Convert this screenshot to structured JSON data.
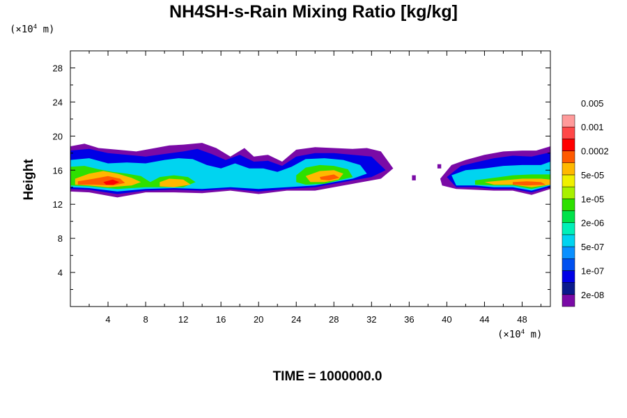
{
  "title": "NH4SH-s-Rain Mixing Ratio [kg/kg]",
  "y_unit": {
    "prefix": "(×10",
    "exp": "4",
    "suffix": " m)"
  },
  "x_unit": {
    "prefix": "(×10",
    "exp": "4",
    "suffix": " m)"
  },
  "time_label": "TIME = 1000000.0",
  "chart_data": {
    "type": "heatmap",
    "title": "NH4SH-s-Rain Mixing Ratio [kg/kg]",
    "xlabel": "",
    "ylabel": "Height",
    "xlim": [
      0,
      51
    ],
    "ylim": [
      0,
      30
    ],
    "x_ticks": [
      4,
      8,
      12,
      16,
      20,
      24,
      28,
      32,
      36,
      40,
      44,
      48
    ],
    "y_ticks": [
      4,
      8,
      12,
      16,
      20,
      24,
      28
    ],
    "colorbar": {
      "colors": [
        "#7a0aa6",
        "#0a1a8c",
        "#0000e6",
        "#0050f0",
        "#0a90ff",
        "#00d4f0",
        "#00f0b8",
        "#00e24a",
        "#2ee000",
        "#a8f000",
        "#f0f000",
        "#ffb800",
        "#ff5a00",
        "#ff0000",
        "#ff4848",
        "#ff9a9a"
      ],
      "labels": [
        "2e-08",
        "1e-07",
        "5e-07",
        "2e-06",
        "1e-05",
        "5e-05",
        "0.0002",
        "0.001",
        "0.005"
      ],
      "label_boundary_index": [
        1,
        3,
        5,
        7,
        9,
        11,
        13,
        15,
        17
      ]
    },
    "cloud_layers": [
      {
        "level": 0,
        "color": "#7a0aa6",
        "polygons": [
          [
            [
              0,
              18.8
            ],
            [
              1.5,
              19.1
            ],
            [
              3,
              18.6
            ],
            [
              5,
              18.4
            ],
            [
              7,
              18.2
            ],
            [
              9,
              18.6
            ],
            [
              10.5,
              18.9
            ],
            [
              12,
              19.0
            ],
            [
              14,
              19.2
            ],
            [
              15.5,
              18.6
            ],
            [
              17,
              17.6
            ],
            [
              18.5,
              18.6
            ],
            [
              19.5,
              17.6
            ],
            [
              21,
              17.8
            ],
            [
              22.5,
              17.0
            ],
            [
              24,
              18.4
            ],
            [
              26,
              18.7
            ],
            [
              28,
              18.6
            ],
            [
              30,
              18.5
            ],
            [
              31.5,
              18.6
            ],
            [
              33,
              18.2
            ],
            [
              34.3,
              16.2
            ],
            [
              33,
              15.0
            ],
            [
              31,
              14.6
            ],
            [
              29,
              14.2
            ],
            [
              26,
              13.6
            ],
            [
              23,
              13.6
            ],
            [
              20,
              13.2
            ],
            [
              17,
              13.6
            ],
            [
              14,
              13.3
            ],
            [
              11,
              13.4
            ],
            [
              8,
              13.4
            ],
            [
              5,
              12.8
            ],
            [
              2,
              13.4
            ],
            [
              0,
              13.5
            ]
          ],
          [
            [
              39.3,
              15.0
            ],
            [
              40.5,
              16.6
            ],
            [
              42,
              17.2
            ],
            [
              44,
              17.8
            ],
            [
              46,
              18.2
            ],
            [
              48,
              18.3
            ],
            [
              49.5,
              18.3
            ],
            [
              51,
              18.8
            ],
            [
              51,
              13.8
            ],
            [
              49,
              13.1
            ],
            [
              47,
              13.6
            ],
            [
              45,
              13.6
            ],
            [
              43,
              13.7
            ],
            [
              41,
              13.8
            ],
            [
              39.5,
              14.2
            ]
          ],
          [
            [
              36.3,
              15.4
            ],
            [
              36.7,
              15.4
            ],
            [
              36.7,
              14.8
            ],
            [
              36.3,
              14.8
            ]
          ],
          [
            [
              39.0,
              16.7
            ],
            [
              39.4,
              16.7
            ],
            [
              39.4,
              16.2
            ],
            [
              39.0,
              16.2
            ]
          ]
        ]
      },
      {
        "level": 2,
        "color": "#0000e6",
        "polygons": [
          [
            [
              0,
              18.3
            ],
            [
              2,
              18.5
            ],
            [
              4,
              18.0
            ],
            [
              6,
              17.8
            ],
            [
              8,
              17.6
            ],
            [
              10,
              17.9
            ],
            [
              12,
              18.2
            ],
            [
              13.5,
              18.5
            ],
            [
              15,
              17.9
            ],
            [
              16.5,
              17.2
            ],
            [
              18,
              17.8
            ],
            [
              19.5,
              17.0
            ],
            [
              21,
              17.1
            ],
            [
              22.5,
              16.5
            ],
            [
              24,
              17.6
            ],
            [
              26,
              18.0
            ],
            [
              28,
              18.0
            ],
            [
              30,
              17.8
            ],
            [
              32,
              17.6
            ],
            [
              33.5,
              16.0
            ],
            [
              32,
              15.2
            ],
            [
              30,
              14.8
            ],
            [
              28,
              14.4
            ],
            [
              26,
              14.0
            ],
            [
              23,
              13.8
            ],
            [
              20,
              13.5
            ],
            [
              17,
              13.8
            ],
            [
              14,
              13.6
            ],
            [
              11,
              13.7
            ],
            [
              8,
              13.6
            ],
            [
              5,
              13.2
            ],
            [
              2,
              13.7
            ],
            [
              0,
              13.8
            ]
          ],
          [
            [
              40,
              15.2
            ],
            [
              41.5,
              16.5
            ],
            [
              43,
              16.9
            ],
            [
              45,
              17.4
            ],
            [
              47,
              17.7
            ],
            [
              49,
              17.6
            ],
            [
              51,
              18.1
            ],
            [
              51,
              14.0
            ],
            [
              49,
              13.4
            ],
            [
              47,
              13.8
            ],
            [
              45,
              13.8
            ],
            [
              43,
              14.0
            ],
            [
              41,
              14.0
            ]
          ]
        ]
      },
      {
        "level": 5,
        "color": "#00d4f0",
        "polygons": [
          [
            [
              0,
              17.2
            ],
            [
              2,
              17.4
            ],
            [
              4,
              16.8
            ],
            [
              6,
              16.9
            ],
            [
              8,
              16.8
            ],
            [
              10,
              17.2
            ],
            [
              11.5,
              17.4
            ],
            [
              13,
              17.3
            ],
            [
              14.5,
              16.6
            ],
            [
              16,
              16.2
            ],
            [
              17.5,
              16.8
            ],
            [
              19,
              16.2
            ],
            [
              20.5,
              16.2
            ],
            [
              22,
              15.8
            ],
            [
              23.5,
              16.4
            ],
            [
              25,
              17.3
            ],
            [
              27,
              17.4
            ],
            [
              29,
              17.2
            ],
            [
              30.8,
              16.6
            ],
            [
              31.5,
              15.6
            ],
            [
              30,
              15.0
            ],
            [
              28,
              14.6
            ],
            [
              26,
              14.2
            ],
            [
              23,
              14.0
            ],
            [
              20,
              13.8
            ],
            [
              17,
              14.0
            ],
            [
              14,
              13.8
            ],
            [
              11,
              13.9
            ],
            [
              8,
              13.8
            ],
            [
              5,
              13.5
            ],
            [
              2,
              13.9
            ],
            [
              0,
              14.0
            ]
          ],
          [
            [
              40.5,
              15.4
            ],
            [
              42,
              16.0
            ],
            [
              44,
              16.2
            ],
            [
              46,
              16.5
            ],
            [
              48,
              16.6
            ],
            [
              50,
              16.6
            ],
            [
              51,
              17.0
            ],
            [
              51,
              14.2
            ],
            [
              49,
              13.6
            ],
            [
              47,
              14.0
            ],
            [
              45,
              14.0
            ],
            [
              43,
              14.2
            ],
            [
              41,
              14.2
            ]
          ]
        ]
      },
      {
        "level": 8,
        "color": "#2ee000",
        "polygons": [
          [
            [
              0,
              16.4
            ],
            [
              1.5,
              16.5
            ],
            [
              3,
              16.1
            ],
            [
              4.5,
              15.8
            ],
            [
              6,
              15.6
            ],
            [
              7.5,
              15.3
            ],
            [
              8.5,
              14.6
            ],
            [
              9.5,
              15.2
            ],
            [
              11,
              15.4
            ],
            [
              12.5,
              15.2
            ],
            [
              13.3,
              14.6
            ],
            [
              12,
              14.0
            ],
            [
              10,
              14.0
            ],
            [
              8,
              14.0
            ],
            [
              5,
              13.8
            ],
            [
              2,
              14.1
            ],
            [
              0,
              14.2
            ]
          ],
          [
            [
              24,
              15.4
            ],
            [
              25,
              16.3
            ],
            [
              26.5,
              16.6
            ],
            [
              28,
              16.5
            ],
            [
              29.5,
              16.1
            ],
            [
              30,
              15.2
            ],
            [
              28.5,
              14.8
            ],
            [
              27,
              14.4
            ],
            [
              25,
              14.3
            ],
            [
              24,
              14.6
            ]
          ],
          [
            [
              43,
              14.8
            ],
            [
              45,
              15.1
            ],
            [
              47,
              15.4
            ],
            [
              49,
              15.5
            ],
            [
              51,
              15.5
            ],
            [
              51,
              14.3
            ],
            [
              49,
              13.8
            ],
            [
              47,
              14.2
            ],
            [
              45,
              14.2
            ],
            [
              43,
              14.3
            ]
          ]
        ]
      },
      {
        "level": 11,
        "color": "#ffb800",
        "polygons": [
          [
            [
              0.5,
              15.0
            ],
            [
              2,
              15.6
            ],
            [
              3.5,
              15.9
            ],
            [
              5,
              15.6
            ],
            [
              6.5,
              15.1
            ],
            [
              7.5,
              14.6
            ],
            [
              6.5,
              14.2
            ],
            [
              4,
              14.0
            ],
            [
              2,
              14.2
            ],
            [
              0.5,
              14.3
            ]
          ],
          [
            [
              9.5,
              14.6
            ],
            [
              10.5,
              15.0
            ],
            [
              12,
              14.9
            ],
            [
              12.8,
              14.3
            ],
            [
              11,
              14.0
            ],
            [
              9.5,
              14.1
            ]
          ],
          [
            [
              25,
              15.3
            ],
            [
              26.5,
              15.9
            ],
            [
              28,
              16.0
            ],
            [
              29,
              15.6
            ],
            [
              28.5,
              14.9
            ],
            [
              27,
              14.6
            ],
            [
              25.5,
              14.6
            ]
          ],
          [
            [
              44,
              14.6
            ],
            [
              46,
              14.8
            ],
            [
              48,
              15.0
            ],
            [
              50,
              15.0
            ],
            [
              51,
              14.9
            ],
            [
              51,
              14.3
            ],
            [
              49,
              14.0
            ],
            [
              47,
              14.3
            ],
            [
              45,
              14.3
            ]
          ]
        ]
      },
      {
        "level": 12,
        "color": "#ff5a00",
        "polygons": [
          [
            [
              0.8,
              14.7
            ],
            [
              2.5,
              15.0
            ],
            [
              4,
              15.3
            ],
            [
              5.3,
              15.0
            ],
            [
              5.8,
              14.5
            ],
            [
              4.5,
              14.2
            ],
            [
              2.5,
              14.3
            ],
            [
              0.8,
              14.3
            ]
          ],
          [
            [
              26.5,
              15.2
            ],
            [
              28,
              15.5
            ],
            [
              28.6,
              15.1
            ],
            [
              27.5,
              14.8
            ],
            [
              26.6,
              14.9
            ]
          ],
          [
            [
              47,
              14.6
            ],
            [
              48.5,
              14.7
            ],
            [
              50,
              14.6
            ],
            [
              50.5,
              14.3
            ],
            [
              48.5,
              14.2
            ],
            [
              47,
              14.3
            ]
          ]
        ]
      },
      {
        "level": 13,
        "color": "#ff0000",
        "polygons": [
          [
            [
              3.5,
              14.6
            ],
            [
              4.5,
              14.9
            ],
            [
              5.2,
              14.6
            ],
            [
              4.6,
              14.3
            ],
            [
              3.8,
              14.3
            ]
          ]
        ]
      }
    ]
  }
}
